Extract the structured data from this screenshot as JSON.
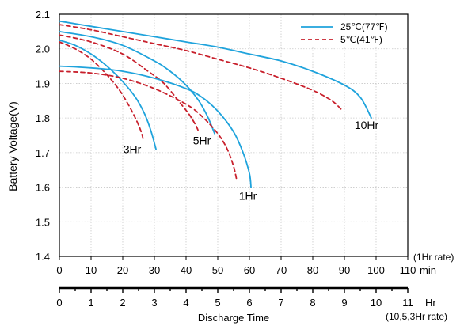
{
  "chart_data": {
    "type": "line",
    "ylabel": "Battery Voltage(V)",
    "xlabel": "Discharge Time",
    "y_range": [
      1.4,
      2.1
    ],
    "y_ticks": [
      "1.4",
      "1.5",
      "1.6",
      "1.7",
      "1.8",
      "1.9",
      "2.0",
      "2.1"
    ],
    "x_min_range": [
      0,
      110
    ],
    "x_min_ticks": [
      "0",
      "10",
      "20",
      "30",
      "40",
      "50",
      "60",
      "70",
      "80",
      "90",
      "100",
      "110"
    ],
    "x_min_unit": "min",
    "x_min_rate": "(1Hr rate)",
    "x_hr_range": [
      0,
      11
    ],
    "x_hr_ticks": [
      "0",
      "1",
      "2",
      "3",
      "4",
      "5",
      "6",
      "7",
      "8",
      "9",
      "10",
      "11"
    ],
    "x_hr_unit": "Hr",
    "x_hr_rate": "(10,5,3Hr rate)",
    "grid": true,
    "legend_position": "top-right",
    "legend": [
      {
        "label": "25℃(77℉)",
        "style": "solid",
        "color": "#1fa3dc"
      },
      {
        "label": "5℃(41℉)",
        "style": "dashed",
        "color": "#c8202c"
      }
    ],
    "curve_labels": [
      {
        "text": "3Hr",
        "x": 23,
        "y": 1.71
      },
      {
        "text": "5Hr",
        "x": 45,
        "y": 1.735
      },
      {
        "text": "1Hr",
        "x": 59.5,
        "y": 1.575
      },
      {
        "text": "10Hr",
        "x": 97,
        "y": 1.78
      }
    ],
    "series": [
      {
        "curve": "10Hr",
        "temp": "25℃(77℉)",
        "axis": "hr",
        "x": [
          0,
          1,
          2,
          3,
          4,
          5,
          6,
          7,
          8,
          9,
          9.5,
          9.85
        ],
        "y": [
          2.08,
          2.065,
          2.05,
          2.035,
          2.02,
          2.005,
          1.985,
          1.965,
          1.935,
          1.895,
          1.86,
          1.8
        ]
      },
      {
        "curve": "10Hr",
        "temp": "5℃(41℉)",
        "axis": "hr",
        "x": [
          0,
          1,
          2,
          3,
          4,
          5,
          6,
          7,
          8,
          8.6,
          8.9
        ],
        "y": [
          2.07,
          2.055,
          2.035,
          2.015,
          1.995,
          1.97,
          1.945,
          1.915,
          1.88,
          1.85,
          1.825
        ]
      },
      {
        "curve": "5Hr",
        "temp": "25℃(77℉)",
        "axis": "hr",
        "x": [
          0,
          1,
          2,
          3,
          3.5,
          4,
          4.4,
          4.7,
          4.9
        ],
        "y": [
          2.05,
          2.035,
          2.01,
          1.965,
          1.935,
          1.895,
          1.85,
          1.8,
          1.755
        ]
      },
      {
        "curve": "5Hr",
        "temp": "5℃(41℉)",
        "axis": "hr",
        "x": [
          0,
          1,
          2,
          2.8,
          3.3,
          3.8,
          4.1,
          4.3,
          4.4
        ],
        "y": [
          2.04,
          2.02,
          1.985,
          1.935,
          1.9,
          1.845,
          1.81,
          1.78,
          1.76
        ]
      },
      {
        "curve": "3Hr",
        "temp": "25℃(77℉)",
        "axis": "hr",
        "x": [
          0,
          0.5,
          1,
          1.5,
          2,
          2.4,
          2.7,
          2.9,
          3.05
        ],
        "y": [
          2.025,
          2.01,
          1.985,
          1.95,
          1.905,
          1.86,
          1.81,
          1.76,
          1.71
        ]
      },
      {
        "curve": "3Hr",
        "temp": "5℃(41℉)",
        "axis": "hr",
        "x": [
          0,
          0.5,
          1,
          1.5,
          1.9,
          2.2,
          2.45,
          2.6,
          2.65
        ],
        "y": [
          2.02,
          2.0,
          1.97,
          1.925,
          1.88,
          1.835,
          1.79,
          1.755,
          1.735
        ]
      },
      {
        "curve": "1Hr",
        "temp": "25℃(77℉)",
        "axis": "min",
        "x": [
          0,
          10,
          20,
          30,
          40,
          45,
          50,
          55,
          58,
          60,
          60.5
        ],
        "y": [
          1.95,
          1.945,
          1.935,
          1.915,
          1.885,
          1.86,
          1.82,
          1.76,
          1.7,
          1.64,
          1.6
        ]
      },
      {
        "curve": "1Hr",
        "temp": "5℃(41℉)",
        "axis": "min",
        "x": [
          0,
          10,
          20,
          30,
          40,
          45,
          50,
          53,
          55,
          56
        ],
        "y": [
          1.935,
          1.93,
          1.915,
          1.885,
          1.84,
          1.805,
          1.755,
          1.71,
          1.66,
          1.62
        ]
      }
    ]
  }
}
